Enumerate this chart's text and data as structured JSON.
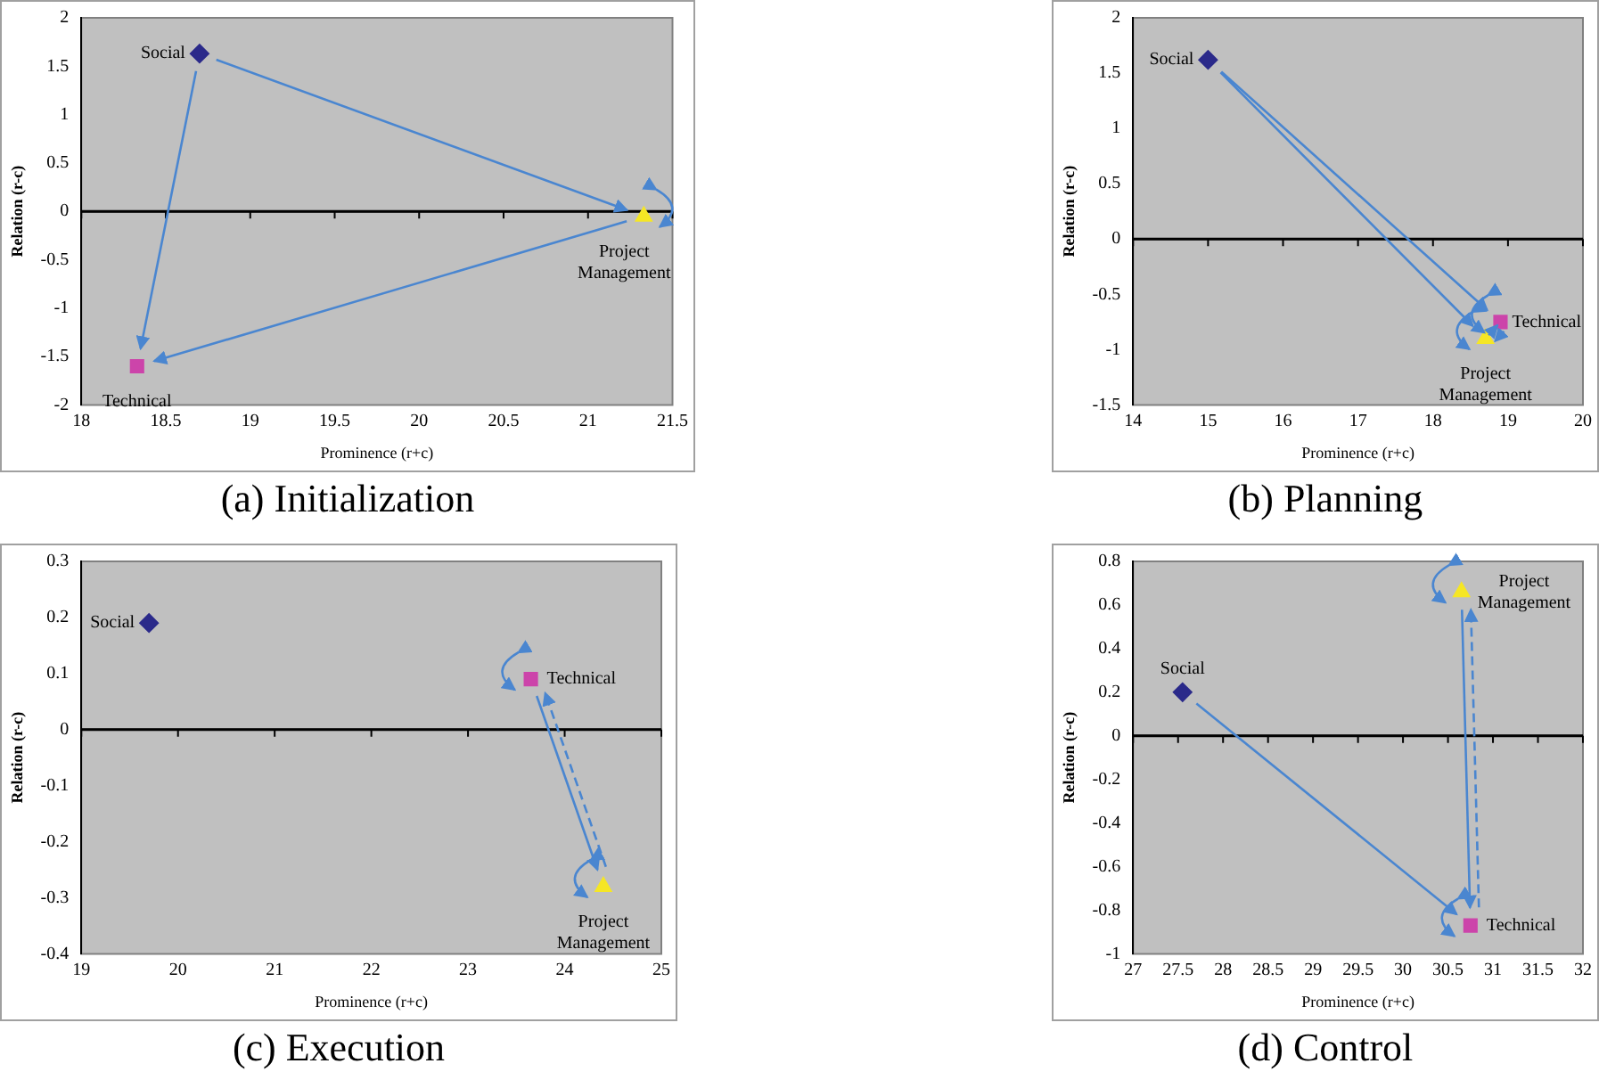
{
  "chart_data": [
    {
      "type": "scatter",
      "title": "(a) Initialization",
      "xlabel": "Prominence (r+c)",
      "ylabel": "Relation (r-c)",
      "xlim": [
        18,
        21.5
      ],
      "xticks": [
        18,
        18.5,
        19,
        19.5,
        20,
        20.5,
        21,
        21.5
      ],
      "ylim": [
        -2,
        2
      ],
      "yticks": [
        -2,
        -1.5,
        -1,
        -0.5,
        0,
        0.5,
        1,
        1.5,
        2
      ],
      "grid": false,
      "legend": false,
      "ref_lines": [
        {
          "axis": "y",
          "value": 0,
          "color": "#000000"
        }
      ],
      "series": [
        {
          "name": "Social",
          "color": "#2b2a8a",
          "marker": "diamond",
          "x": [
            18.7
          ],
          "values": [
            1.63
          ]
        },
        {
          "name": "Technical",
          "color": "#cc44aa",
          "marker": "square",
          "x": [
            18.33
          ],
          "values": [
            -1.6
          ]
        },
        {
          "name": "Project Management",
          "color": "#f5e625",
          "marker": "triangle",
          "x": [
            21.33
          ],
          "values": [
            -0.05
          ]
        }
      ]
    },
    {
      "type": "scatter",
      "title": "(b) Planning",
      "xlabel": "Prominence (r+c)",
      "ylabel": "Relation (r-c)",
      "xlim": [
        14,
        20
      ],
      "xticks": [
        14,
        15,
        16,
        17,
        18,
        19,
        20
      ],
      "ylim": [
        -1.5,
        2
      ],
      "yticks": [
        -1.5,
        -1,
        -0.5,
        0,
        0.5,
        1,
        1.5,
        2
      ],
      "grid": false,
      "legend": false,
      "ref_lines": [
        {
          "axis": "y",
          "value": 0,
          "color": "#000000"
        }
      ],
      "series": [
        {
          "name": "Social",
          "color": "#2b2a8a",
          "marker": "diamond",
          "x": [
            15
          ],
          "values": [
            1.62
          ]
        },
        {
          "name": "Technical",
          "color": "#cc44aa",
          "marker": "square",
          "x": [
            18.9
          ],
          "values": [
            -0.75
          ]
        },
        {
          "name": "Project Management",
          "color": "#f5e625",
          "marker": "triangle",
          "x": [
            18.7
          ],
          "values": [
            -0.9
          ]
        }
      ]
    },
    {
      "type": "scatter",
      "title": "(c) Execution",
      "xlabel": "Prominence (r+c)",
      "ylabel": "Relation (r-c)",
      "xlim": [
        19,
        25
      ],
      "xticks": [
        19,
        20,
        21,
        22,
        23,
        24,
        25
      ],
      "ylim": [
        -0.4,
        0.3
      ],
      "yticks": [
        -0.4,
        -0.3,
        -0.2,
        -0.1,
        0,
        0.1,
        0.2,
        0.3
      ],
      "grid": false,
      "legend": false,
      "ref_lines": [
        {
          "axis": "y",
          "value": 0,
          "color": "#000000"
        }
      ],
      "series": [
        {
          "name": "Social",
          "color": "#2b2a8a",
          "marker": "diamond",
          "x": [
            19.7
          ],
          "values": [
            0.19
          ]
        },
        {
          "name": "Technical",
          "color": "#cc44aa",
          "marker": "square",
          "x": [
            23.65
          ],
          "values": [
            0.09
          ]
        },
        {
          "name": "Project Management",
          "color": "#f5e625",
          "marker": "triangle",
          "x": [
            24.4
          ],
          "values": [
            -0.28
          ]
        }
      ]
    },
    {
      "type": "scatter",
      "title": "(d) Control",
      "xlabel": "Prominence (r+c)",
      "ylabel": "Relation (r-c)",
      "xlim": [
        27,
        32
      ],
      "xticks": [
        27,
        27.5,
        28,
        28.5,
        29,
        29.5,
        30,
        30.5,
        31,
        31.5,
        32
      ],
      "ylim": [
        -1,
        0.8
      ],
      "yticks": [
        -1,
        -0.8,
        -0.6,
        -0.4,
        -0.2,
        0,
        0.2,
        0.4,
        0.6,
        0.8
      ],
      "grid": false,
      "legend": false,
      "ref_lines": [
        {
          "axis": "y",
          "value": 0,
          "color": "#000000"
        }
      ],
      "series": [
        {
          "name": "Social",
          "color": "#2b2a8a",
          "marker": "diamond",
          "x": [
            27.55
          ],
          "values": [
            0.2
          ]
        },
        {
          "name": "Technical",
          "color": "#cc44aa",
          "marker": "square",
          "x": [
            30.75
          ],
          "values": [
            -0.87
          ]
        },
        {
          "name": "Project Management",
          "color": "#f5e625",
          "marker": "triangle",
          "x": [
            30.65
          ],
          "values": [
            0.66
          ]
        }
      ]
    }
  ]
}
